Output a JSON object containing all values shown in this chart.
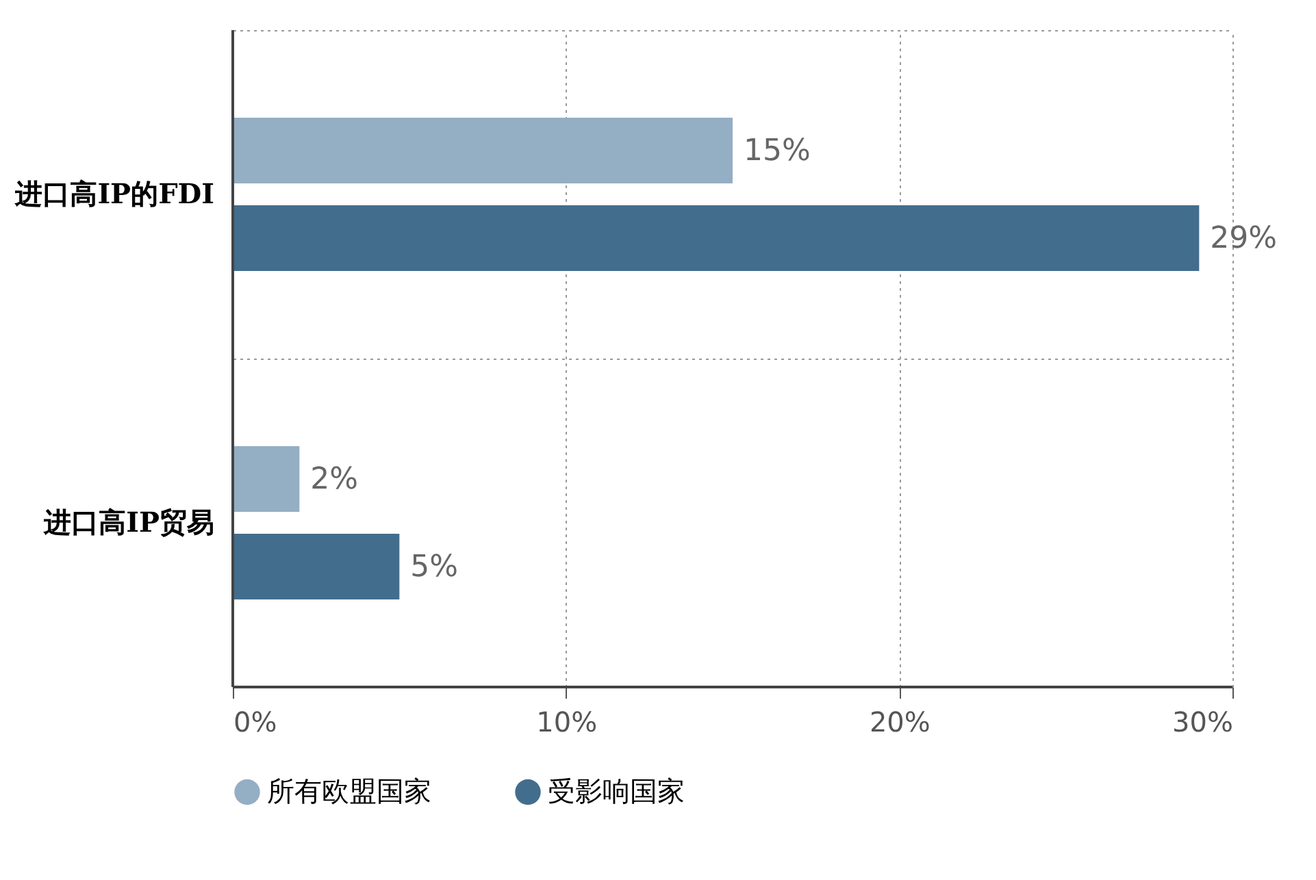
{
  "chart_data": {
    "type": "bar",
    "orientation": "horizontal",
    "categories": [
      "进口高IP的FDI",
      "进口高IP贸易"
    ],
    "series": [
      {
        "name": "所有欧盟国家",
        "color": "#94aec4",
        "values": [
          15,
          2
        ],
        "value_labels": [
          "15%",
          "2%"
        ]
      },
      {
        "name": "受影响国家",
        "color": "#436d8c",
        "values": [
          29,
          5
        ],
        "value_labels": [
          "29%",
          "5%"
        ]
      }
    ],
    "xlim": [
      0,
      30
    ],
    "xticks": [
      {
        "value": 0,
        "label": "0%"
      },
      {
        "value": 10,
        "label": "10%"
      },
      {
        "value": 20,
        "label": "20%"
      },
      {
        "value": 30,
        "label": "30%"
      }
    ],
    "grid": true,
    "legend": "bottom left"
  }
}
